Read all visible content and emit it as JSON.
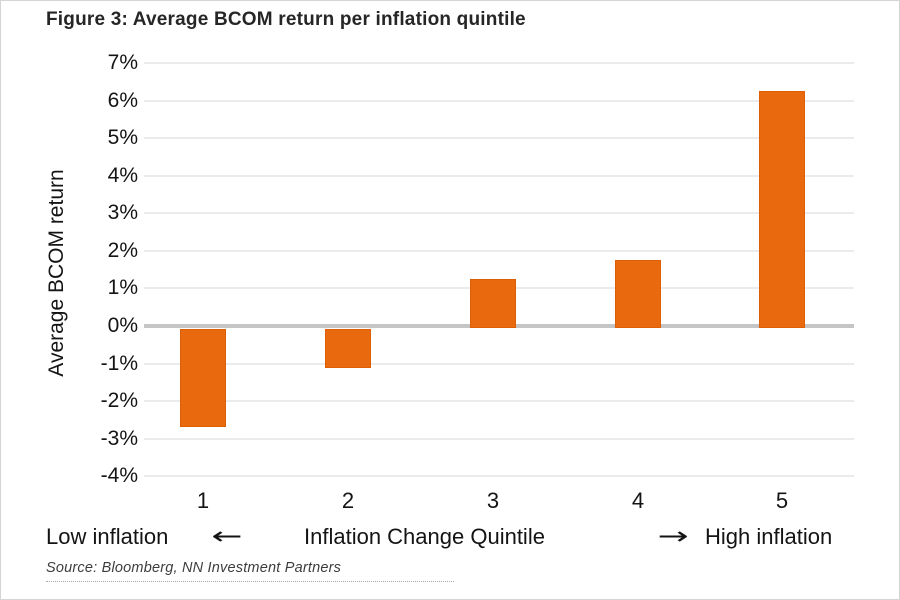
{
  "chart_data": {
    "type": "bar",
    "title": "Figure 3: Average BCOM return per inflation quintile",
    "categories": [
      "1",
      "2",
      "3",
      "4",
      "5"
    ],
    "values": [
      -2.6,
      -1.05,
      1.3,
      1.8,
      6.3
    ],
    "xlabel": "Inflation Change Quintile",
    "ylabel": "Average BCOM return",
    "ylim": [
      -4,
      7
    ],
    "yticks": [
      7,
      6,
      5,
      4,
      3,
      2,
      1,
      0,
      -1,
      -2,
      -3,
      -4
    ],
    "ytick_suffix": "%",
    "grid": true,
    "legend": "none",
    "bar_color": "#e8690e",
    "zero_line_color": "#c5c5c5",
    "gridline_color": "#ebebeb",
    "annotations": {
      "left_label": "Low inflation",
      "left_arrow": "←",
      "right_arrow": "→",
      "right_label": "High inflation"
    }
  },
  "source": "Source: Bloomberg, NN Investment Partners"
}
